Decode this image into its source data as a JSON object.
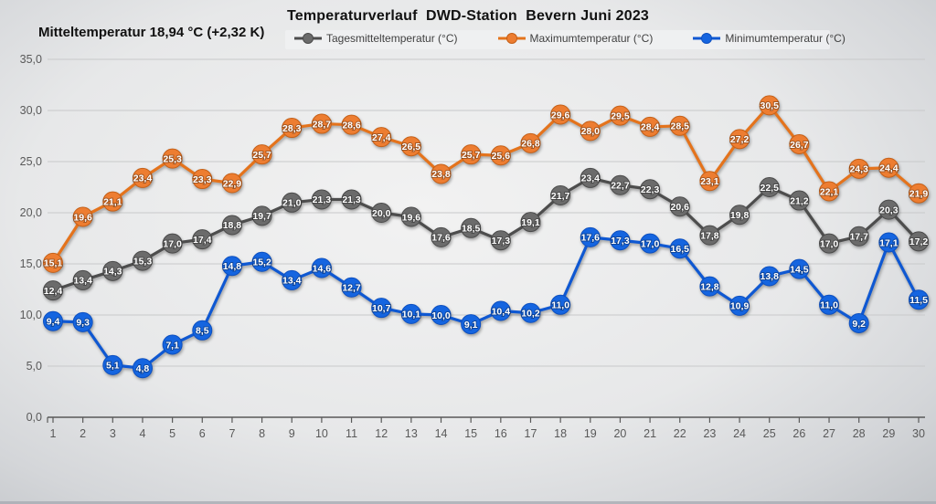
{
  "header": {
    "title": "Temperaturverlauf  DWD-Station  Bevern Juni 2023",
    "subtitle": "Mitteltemperatur 18,94 °C (+2,32 K)"
  },
  "chart_data": {
    "type": "line",
    "title": "Temperaturverlauf  DWD-Station  Bevern Juni 2023",
    "subtitle": "Mitteltemperatur 18,94 °C (+2,32 K)",
    "xlabel": "",
    "ylabel": "",
    "x": [
      1,
      2,
      3,
      4,
      5,
      6,
      7,
      8,
      9,
      10,
      11,
      12,
      13,
      14,
      15,
      16,
      17,
      18,
      19,
      20,
      21,
      22,
      23,
      24,
      25,
      26,
      27,
      28,
      29,
      30
    ],
    "series": [
      {
        "name": "Tagesmitteltemperatur (°C)",
        "marker_color": "#6b6b6b",
        "marker_stroke": "#4a4a4a",
        "line_color": "#4d4d4d",
        "values": [
          12.4,
          13.4,
          14.3,
          15.3,
          17.0,
          17.4,
          18.8,
          19.7,
          21.0,
          21.3,
          21.3,
          20.0,
          19.6,
          17.6,
          18.5,
          17.3,
          19.1,
          21.7,
          23.4,
          22.7,
          22.3,
          20.6,
          17.8,
          19.8,
          22.5,
          21.2,
          17.0,
          17.7,
          20.3,
          17.2
        ]
      },
      {
        "name": "Maximumtemperatur (°C)",
        "marker_color": "#ED7D31",
        "marker_stroke": "#c55f16",
        "line_color": "#e4731c",
        "values": [
          15.1,
          19.6,
          21.1,
          23.4,
          25.3,
          23.3,
          22.9,
          25.7,
          28.3,
          28.7,
          28.6,
          27.4,
          26.5,
          23.8,
          25.7,
          25.6,
          26.8,
          29.6,
          28.0,
          29.5,
          28.4,
          28.5,
          23.1,
          27.2,
          30.5,
          26.7,
          22.1,
          24.3,
          24.4,
          21.9
        ]
      },
      {
        "name": "Minimumtemperatur (°C)",
        "marker_color": "#1565e0",
        "marker_stroke": "#0c4fc0",
        "line_color": "#0f58d2",
        "values": [
          9.4,
          9.3,
          5.1,
          4.8,
          7.1,
          8.5,
          14.8,
          15.2,
          13.4,
          14.6,
          12.7,
          10.7,
          10.1,
          10.0,
          9.1,
          10.4,
          10.2,
          11.0,
          17.6,
          17.3,
          17.0,
          16.5,
          12.8,
          10.9,
          13.8,
          14.5,
          11.0,
          9.2,
          17.1,
          11.5
        ]
      }
    ],
    "ylim": [
      0,
      35
    ],
    "ytick_step": 5,
    "ytick_labels": [
      "0,0",
      "5,0",
      "10,0",
      "15,0",
      "20,0",
      "25,0",
      "30,0",
      "35,0"
    ],
    "grid": true,
    "legend_position": "top",
    "decimal_separator": ",",
    "data_labels": true,
    "axis_text_color": "#595959",
    "gridline_color": "#c8c9ca"
  }
}
